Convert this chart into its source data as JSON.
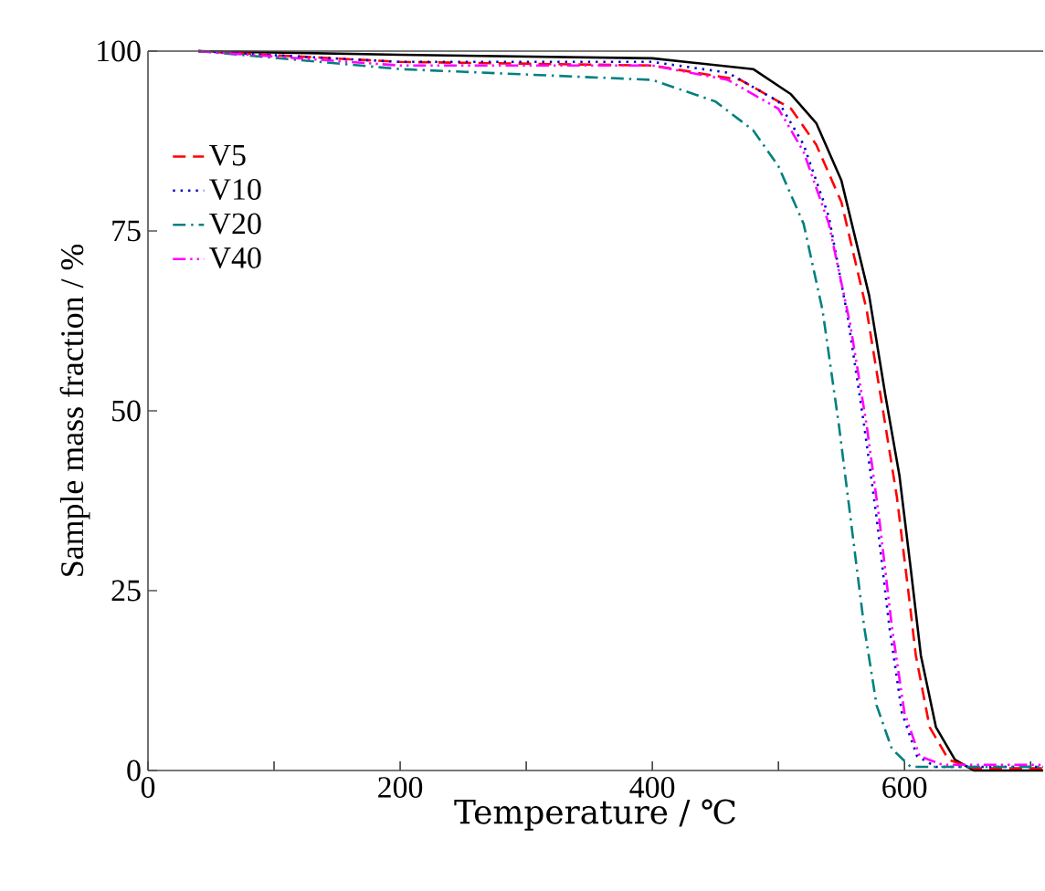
{
  "chart_data": {
    "type": "line",
    "xlabel": "Temperature / ℃",
    "ylabel": "Sample mass fraction / %",
    "xlim": [
      0,
      710
    ],
    "ylim": [
      0,
      100
    ],
    "xticks": [
      0,
      {
        "value": 100,
        "label": null
      },
      200,
      {
        "value": 300,
        "label": null
      },
      400,
      {
        "value": 500,
        "label": null
      },
      600,
      {
        "value": 700,
        "label": null
      }
    ],
    "yticks": [
      0,
      25,
      50,
      75,
      100
    ],
    "legend": "top left",
    "grid": false,
    "marker": "none",
    "series": [
      {
        "color": "#000000",
        "line_style": "solid",
        "x": [
          40,
          200,
          400,
          480,
          510,
          530,
          550,
          572,
          585,
          596,
          605,
          613,
          625,
          640,
          655,
          710
        ],
        "values": [
          100,
          99.5,
          99,
          97.5,
          94,
          90,
          82,
          66,
          52,
          41,
          28,
          16,
          6,
          1.5,
          0,
          0
        ]
      },
      {
        "name": "V5",
        "color": "#ff0000",
        "line_style": "dashed",
        "x": [
          40,
          200,
          400,
          470,
          510,
          530,
          550,
          570,
          583,
          594,
          603,
          609,
          620,
          635,
          655,
          710
        ],
        "values": [
          100,
          98.5,
          98,
          96,
          92,
          87,
          79,
          64,
          50,
          38,
          25,
          16,
          6,
          1.5,
          0.3,
          0.3
        ]
      },
      {
        "name": "V10",
        "color": "#0000cc",
        "line_style": "dotted",
        "x": [
          40,
          200,
          400,
          460,
          500,
          520,
          540,
          555,
          568,
          578,
          588,
          598,
          610,
          625,
          710
        ],
        "values": [
          100,
          98.5,
          98.5,
          97,
          93,
          87,
          77,
          63,
          48,
          35,
          20,
          8,
          2,
          0.5,
          0.5
        ]
      },
      {
        "name": "V20",
        "color": "#008080",
        "line_style": "dashdot",
        "x": [
          40,
          200,
          400,
          450,
          480,
          500,
          520,
          535,
          548,
          558,
          568,
          578,
          590,
          605,
          710
        ],
        "values": [
          100,
          97.5,
          96,
          93,
          89,
          84,
          76,
          64,
          48,
          34,
          20,
          9,
          3,
          0.5,
          0.5
        ]
      },
      {
        "name": "V40",
        "color": "#ff00ff",
        "line_style": "dashdotdot",
        "x": [
          40,
          200,
          400,
          460,
          500,
          520,
          540,
          557,
          570,
          580,
          590,
          600,
          612,
          630,
          710
        ],
        "values": [
          100,
          98,
          98,
          96,
          92,
          86,
          76,
          62,
          48,
          35,
          20,
          8,
          2,
          0.8,
          0.8
        ]
      }
    ]
  }
}
